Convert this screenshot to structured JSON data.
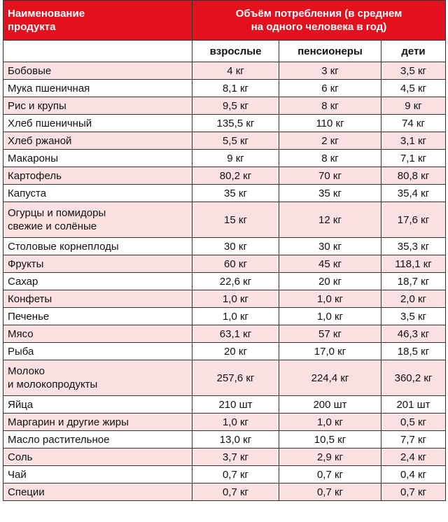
{
  "table": {
    "header": {
      "name": "Наименование\nпродукта",
      "consumption": "Объём потребления (в среднем\nна одного человека в год)"
    },
    "columns": [
      "взрослые",
      "пенсионеры",
      "дети"
    ],
    "rows": [
      [
        "Бобовые",
        "4 кг",
        "3 кг",
        "3,5 кг"
      ],
      [
        "Мука пшеничная",
        "8,1 кг",
        "6 кг",
        "4,5 кг"
      ],
      [
        "Рис и крупы",
        "9,5 кг",
        "8 кг",
        "9 кг"
      ],
      [
        "Хлеб пшеничный",
        "135,5 кг",
        "110 кг",
        "74 кг"
      ],
      [
        "Хлеб ржаной",
        "5,5 кг",
        "2 кг",
        "3,1 кг"
      ],
      [
        "Макароны",
        "9 кг",
        "8 кг",
        "7,1 кг"
      ],
      [
        "Картофель",
        "80,2 кг",
        "70 кг",
        "80,8 кг"
      ],
      [
        "Капуста",
        "35 кг",
        "35 кг",
        "35,4 кг"
      ],
      [
        "Огурцы и помидоры\nсвежие и солёные",
        "15 кг",
        "12 кг",
        "17,6 кг"
      ],
      [
        "Столовые корнеплоды",
        "30 кг",
        "30 кг",
        "35,3 кг"
      ],
      [
        "Фрукты",
        "60 кг",
        "45 кг",
        "118,1 кг"
      ],
      [
        "Сахар",
        "22,6 кг",
        "20 кг",
        "18,7 кг"
      ],
      [
        "Конфеты",
        "1,0 кг",
        "1,0 кг",
        "2,0 кг"
      ],
      [
        "Печенье",
        "1,0 кг",
        "1,0 кг",
        "3,5 кг"
      ],
      [
        "Мясо",
        "63,1 кг",
        "57 кг",
        "46,3 кг"
      ],
      [
        "Рыба",
        "20 кг",
        "17,0 кг",
        "18,5 кг"
      ],
      [
        "Молоко\nи молокопродукты",
        "257,6 кг",
        "224,4 кг",
        "360,2 кг"
      ],
      [
        "Яйца",
        "210 шт",
        "200 шт",
        "201 шт"
      ],
      [
        "Маргарин и другие жиры",
        "1,0 кг",
        "1,0 кг",
        "0,5 кг"
      ],
      [
        "Масло растительное",
        "13,0 кг",
        "10,5 кг",
        "7,7 кг"
      ],
      [
        "Соль",
        "3,7 кг",
        "2,9 кг",
        "2,4 кг"
      ],
      [
        "Чай",
        "0,7 кг",
        "0,7 кг",
        "0,4 кг"
      ],
      [
        "Специи",
        "0,7 кг",
        "0,7 кг",
        "0,7 кг"
      ]
    ]
  }
}
